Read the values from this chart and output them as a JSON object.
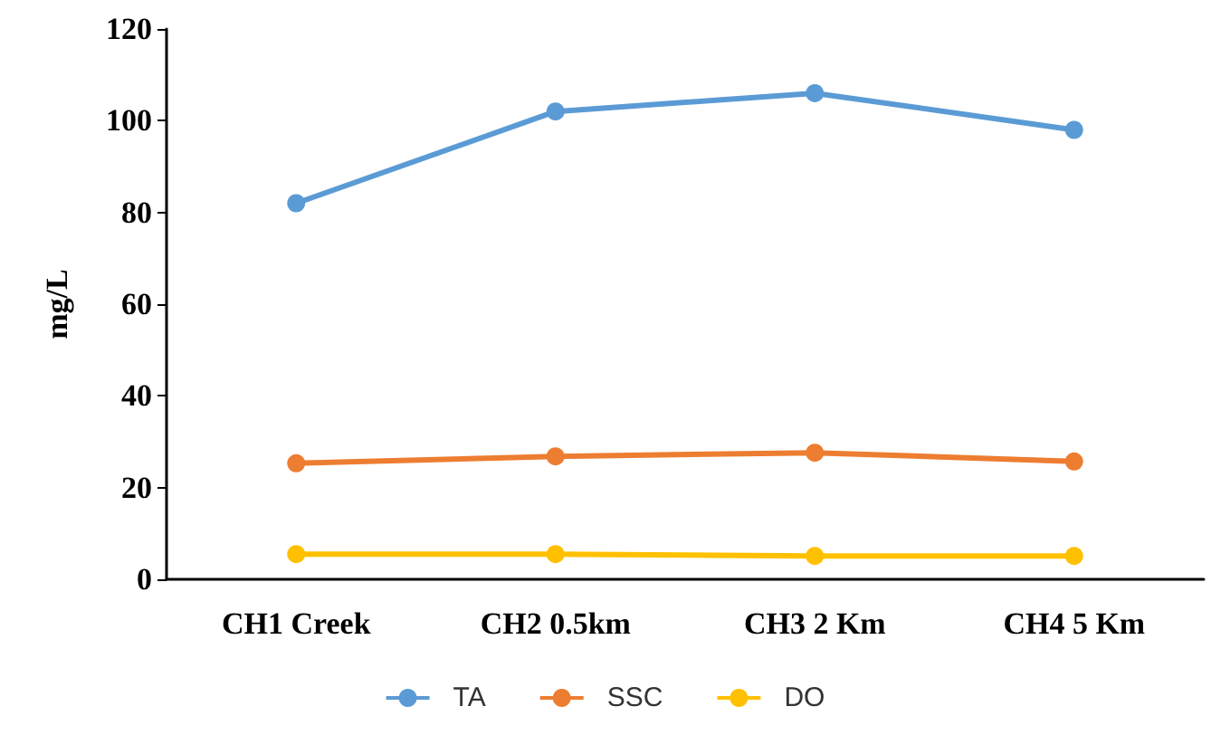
{
  "chart_data": {
    "type": "line",
    "ylabel": "mg/L",
    "categories": [
      "CH1 Creek",
      "CH2 0.5km",
      "CH3 2 Km",
      "CH4 5 Km"
    ],
    "series": [
      {
        "name": "TA",
        "color": "#5b9bd5",
        "values": [
          82,
          102,
          106,
          98
        ]
      },
      {
        "name": "SSC",
        "color": "#ed7d31",
        "values": [
          25.3,
          26.8,
          27.6,
          25.7
        ]
      },
      {
        "name": "DO",
        "color": "#ffc000",
        "values": [
          5.5,
          5.5,
          5.1,
          5.1
        ]
      }
    ],
    "ylim": [
      0,
      120
    ],
    "yticks": [
      0,
      20,
      40,
      60,
      80,
      100,
      120
    ],
    "grid": false,
    "legend": "bottom",
    "marker": "circle",
    "line_style": "solid"
  }
}
